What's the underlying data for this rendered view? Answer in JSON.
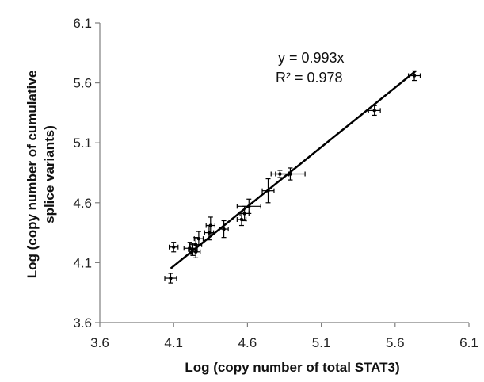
{
  "chart_data": {
    "type": "scatter",
    "title": "",
    "xlabel": "Log (copy number of total STAT3)",
    "ylabel": "Log (copy number of cumulative splice variants)",
    "xlim": [
      3.6,
      6.1
    ],
    "ylim": [
      3.6,
      6.1
    ],
    "xticks": [
      3.6,
      4.1,
      4.6,
      5.1,
      5.6,
      6.1
    ],
    "yticks": [
      3.6,
      4.1,
      4.6,
      5.1,
      5.6,
      6.1
    ],
    "xtick_labels": [
      "3.6",
      "4.1",
      "4.6",
      "5.1",
      "5.6",
      "6.1"
    ],
    "ytick_labels": [
      "3.6",
      "4.1",
      "4.6",
      "5.1",
      "5.6",
      "6.1"
    ],
    "grid": false,
    "legend": "none",
    "trendline": {
      "slope": 0.993,
      "intercept": 0,
      "x_range": [
        4.08,
        5.74
      ]
    },
    "annotations": [
      "y = 0.993x",
      "R² = 0.978"
    ],
    "colors": {
      "marker": "#000000",
      "line": "#000000",
      "axis": "#7f7f7f"
    },
    "points": [
      {
        "x": 4.08,
        "y": 3.97,
        "xerr": 0.04,
        "yerr": 0.04
      },
      {
        "x": 4.1,
        "y": 4.23,
        "xerr": 0.03,
        "yerr": 0.04
      },
      {
        "x": 4.21,
        "y": 4.22,
        "xerr": 0.04,
        "yerr": 0.05
      },
      {
        "x": 4.23,
        "y": 4.21,
        "xerr": 0.03,
        "yerr": 0.05
      },
      {
        "x": 4.25,
        "y": 4.25,
        "xerr": 0.04,
        "yerr": 0.06
      },
      {
        "x": 4.25,
        "y": 4.19,
        "xerr": 0.03,
        "yerr": 0.05
      },
      {
        "x": 4.27,
        "y": 4.3,
        "xerr": 0.03,
        "yerr": 0.06
      },
      {
        "x": 4.34,
        "y": 4.35,
        "xerr": 0.03,
        "yerr": 0.06
      },
      {
        "x": 4.35,
        "y": 4.41,
        "xerr": 0.03,
        "yerr": 0.07
      },
      {
        "x": 4.44,
        "y": 4.38,
        "xerr": 0.03,
        "yerr": 0.07
      },
      {
        "x": 4.56,
        "y": 4.46,
        "xerr": 0.03,
        "yerr": 0.05
      },
      {
        "x": 4.58,
        "y": 4.51,
        "xerr": 0.03,
        "yerr": 0.06
      },
      {
        "x": 4.61,
        "y": 4.57,
        "xerr": 0.08,
        "yerr": 0.06
      },
      {
        "x": 4.74,
        "y": 4.7,
        "xerr": 0.04,
        "yerr": 0.1
      },
      {
        "x": 4.82,
        "y": 4.84,
        "xerr": 0.06,
        "yerr": 0.03
      },
      {
        "x": 4.89,
        "y": 4.84,
        "xerr": 0.1,
        "yerr": 0.05
      },
      {
        "x": 5.46,
        "y": 5.37,
        "xerr": 0.04,
        "yerr": 0.04
      },
      {
        "x": 5.73,
        "y": 5.66,
        "xerr": 0.04,
        "yerr": 0.04
      }
    ]
  }
}
